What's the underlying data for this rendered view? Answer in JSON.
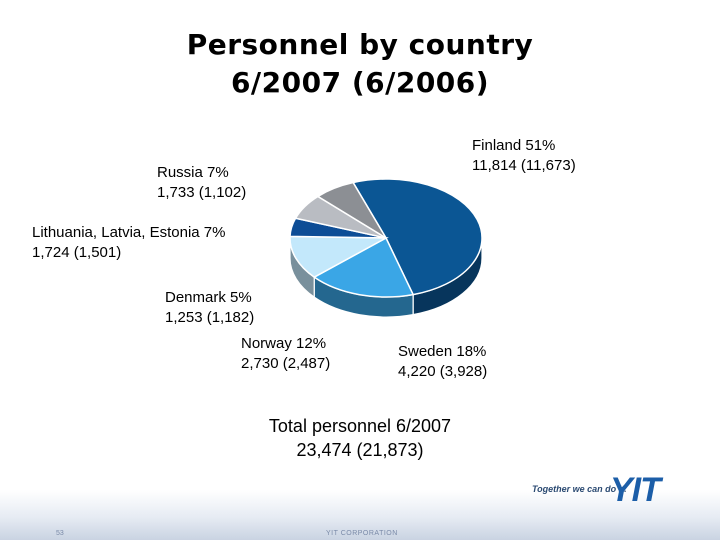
{
  "title_line1": "Personnel by country",
  "title_line2": "6/2007 (6/2006)",
  "chart_data": {
    "type": "pie",
    "slices": [
      {
        "name": "Finland",
        "percent": 51,
        "value": 11814,
        "prev": 11673,
        "color": "#0b5694",
        "label1": "Finland 51%",
        "label2": "11,814 (11,673)"
      },
      {
        "name": "Sweden",
        "percent": 18,
        "value": 4220,
        "prev": 3928,
        "color": "#3aa6e6",
        "label1": "Sweden 18%",
        "label2": "4,220 (3,928)"
      },
      {
        "name": "Norway",
        "percent": 12,
        "value": 2730,
        "prev": 2487,
        "color": "#c3e8fb",
        "label1": "Norway 12%",
        "label2": "2,730 (2,487)"
      },
      {
        "name": "Denmark",
        "percent": 5,
        "value": 1253,
        "prev": 1182,
        "color": "#0d4d96",
        "label1": "Denmark 5%",
        "label2": "1,253 (1,182)"
      },
      {
        "name": "Lithuania, Latvia, Estonia",
        "percent": 7,
        "value": 1724,
        "prev": 1501,
        "color": "#b9bcc2",
        "label1": "Lithuania, Latvia, Estonia 7%",
        "label2": "1,724 (1,501)"
      },
      {
        "name": "Russia",
        "percent": 7,
        "value": 1733,
        "prev": 1102,
        "color": "#8c8f94",
        "label1": "Russia 7%",
        "label2": "1,733 (1,102)"
      }
    ]
  },
  "total_line1": "Total personnel 6/2007",
  "total_line2": "23,474 (21,873)",
  "footer": {
    "slogan": "Together we can do it.",
    "logo": "YIT",
    "page_number": "53",
    "corporation": "YIT CORPORATION"
  }
}
